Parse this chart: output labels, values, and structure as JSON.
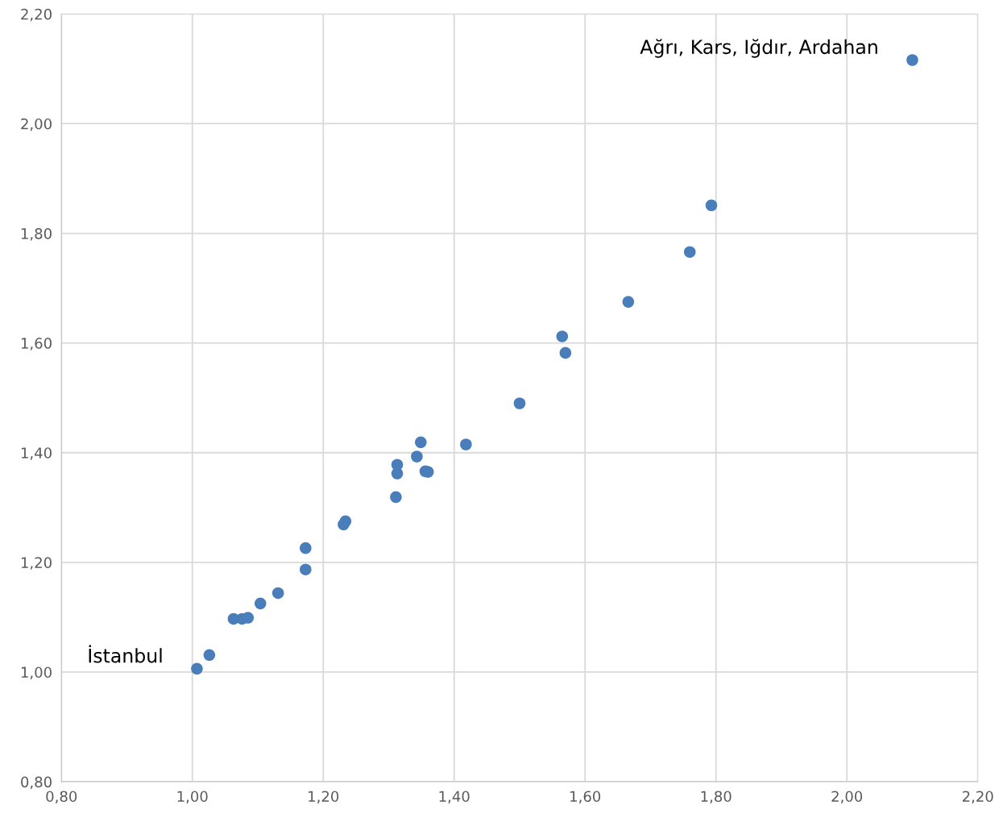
{
  "chart_data": {
    "type": "scatter",
    "x": [
      2.1,
      1.793,
      1.76,
      1.666,
      1.565,
      1.57,
      1.5,
      1.418,
      1.349,
      1.343,
      1.313,
      1.313,
      1.356,
      1.36,
      1.311,
      1.234,
      1.231,
      1.173,
      1.173,
      1.131,
      1.104,
      1.085,
      1.076,
      1.063,
      1.026,
      1.007
    ],
    "values": [
      2.116,
      1.851,
      1.766,
      1.675,
      1.612,
      1.582,
      1.49,
      1.415,
      1.419,
      1.393,
      1.378,
      1.362,
      1.366,
      1.365,
      1.319,
      1.275,
      1.269,
      1.226,
      1.187,
      1.144,
      1.125,
      1.099,
      1.097,
      1.097,
      1.031,
      1.006
    ],
    "color": "#4a7ebb",
    "marker": "circle",
    "xlim": [
      0.8,
      2.2
    ],
    "ylim": [
      0.8,
      2.2
    ],
    "xticks": [
      {
        "value": 0.8,
        "label": "0,80"
      },
      {
        "value": 1.0,
        "label": "1,00"
      },
      {
        "value": 1.2,
        "label": "1,20"
      },
      {
        "value": 1.4,
        "label": "1,40"
      },
      {
        "value": 1.6,
        "label": "1,60"
      },
      {
        "value": 1.8,
        "label": "1,80"
      },
      {
        "value": 2.0,
        "label": "2,00"
      },
      {
        "value": 2.2,
        "label": "2,20"
      }
    ],
    "yticks": [
      {
        "value": 0.8,
        "label": "0,80"
      },
      {
        "value": 1.0,
        "label": "1,00"
      },
      {
        "value": 1.2,
        "label": "1,20"
      },
      {
        "value": 1.4,
        "label": "1,40"
      },
      {
        "value": 1.6,
        "label": "1,60"
      },
      {
        "value": 1.8,
        "label": "1,80"
      },
      {
        "value": 2.0,
        "label": "2,00"
      },
      {
        "value": 2.2,
        "label": "2,20"
      }
    ],
    "grid": true,
    "annotations": [
      {
        "text": "Ağrı, Kars, Iğdır, Ardahan",
        "x": 2.1,
        "y": 2.116
      },
      {
        "text": "İstanbul",
        "x": 1.007,
        "y": 1.006
      }
    ]
  }
}
